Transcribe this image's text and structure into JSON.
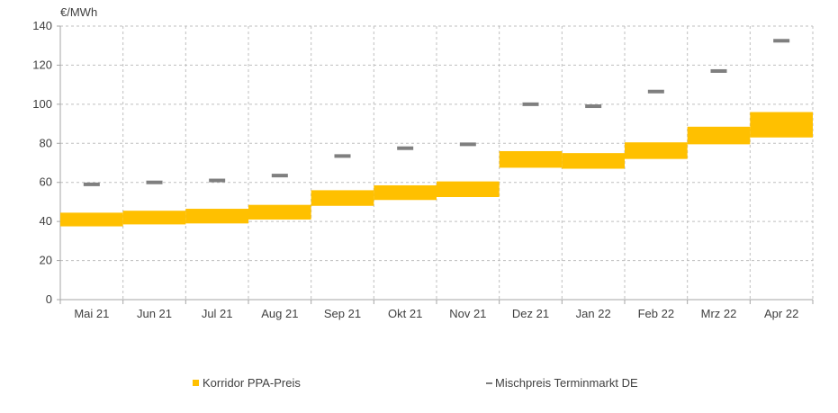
{
  "chart_data": {
    "type": "range-bar-with-markers",
    "unit_label": "€/MWh",
    "categories": [
      "Mai 21",
      "Jun 21",
      "Jul 21",
      "Aug 21",
      "Sep 21",
      "Okt 21",
      "Nov 21",
      "Dez 21",
      "Jan 22",
      "Feb 22",
      "Mrz 22",
      "Apr 22"
    ],
    "ylim": [
      0,
      140
    ],
    "yticks": [
      0,
      20,
      40,
      60,
      80,
      100,
      120,
      140
    ],
    "grid": true,
    "legend_position": "bottom",
    "series": [
      {
        "name": "Korridor PPA-Preis",
        "kind": "range",
        "color": "#FFC000",
        "low": [
          37.5,
          38.5,
          39,
          41,
          48,
          51,
          52.5,
          67.5,
          67,
          72,
          79.5,
          83
        ],
        "high": [
          44.5,
          45.5,
          46.5,
          48.5,
          56,
          58.5,
          60.5,
          76,
          75,
          80.5,
          88.5,
          96
        ]
      },
      {
        "name": "Mischpreis Terminmarkt DE",
        "kind": "marker",
        "color": "#7F7F7F",
        "values": [
          59,
          60,
          61,
          63.5,
          73.5,
          77.5,
          79.5,
          100,
          99,
          106.5,
          117,
          132.5
        ]
      }
    ]
  },
  "legend": {
    "range_label": "Korridor PPA-Preis",
    "marker_label": "Mischpreis Terminmarkt DE"
  }
}
